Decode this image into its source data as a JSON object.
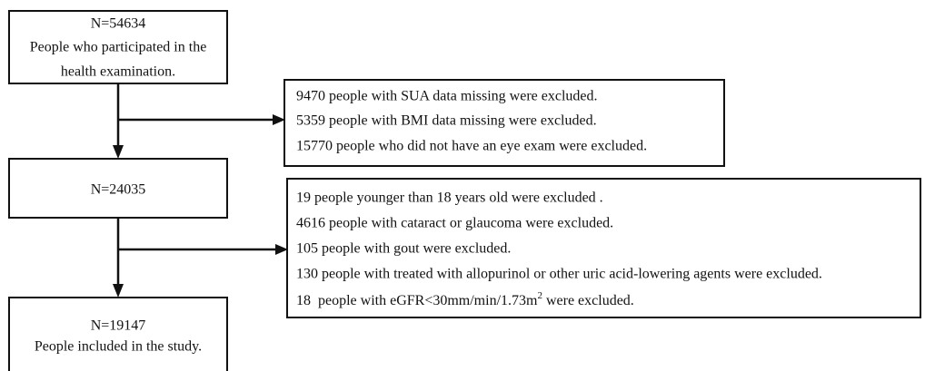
{
  "nodes": [
    {
      "lines": [
        "N=54634",
        "People who participated in the",
        "health examination."
      ]
    },
    {
      "lines": [
        "N=24035"
      ]
    },
    {
      "lines": [
        "N=19147",
        "People included in the study."
      ]
    }
  ],
  "exclusions": [
    {
      "lines": [
        "9470 people with SUA data missing were excluded.",
        "5359 people with BMI data missing were excluded.",
        "15770 people who did not have an eye exam were excluded."
      ]
    },
    {
      "lines": [
        "19 people younger than 18 years old were excluded .",
        "4616 people  with cataract or  glaucoma were excluded.",
        "105 people  with gout were excluded.",
        "130  people  with treated with allopurinol or other uric acid-lowering agents were excluded."
      ],
      "last_line": {
        "before": "18  people with eGFR<30mm/min/1.73m",
        "superscript": "2",
        "after": " were excluded."
      }
    }
  ]
}
